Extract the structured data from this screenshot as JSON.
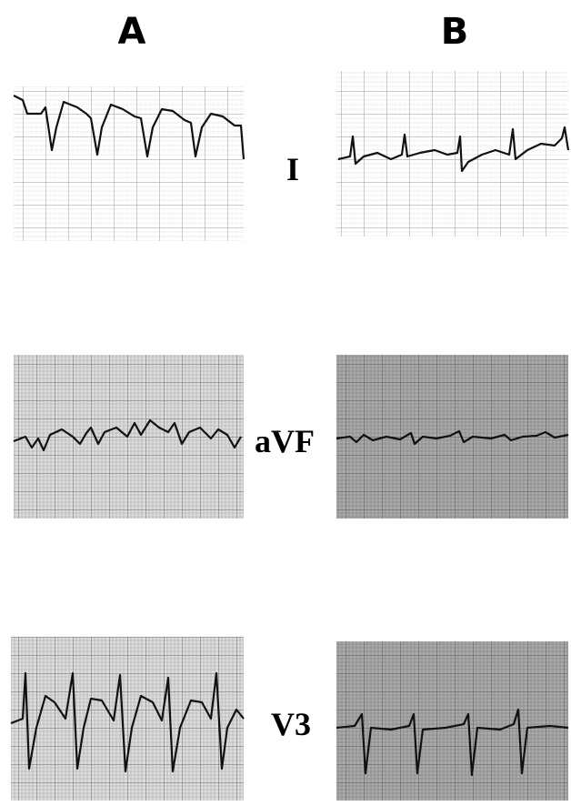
{
  "columns": [
    "A",
    "B"
  ],
  "leads": [
    "I",
    "aVF",
    "V3"
  ]
}
